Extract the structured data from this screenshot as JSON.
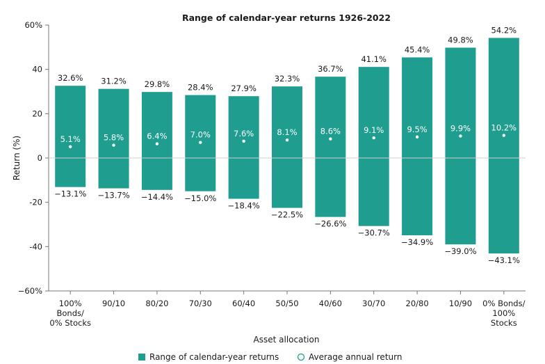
{
  "chart_data": {
    "type": "bar",
    "title": "Range of calendar-year returns 1926-2022",
    "xlabel": "Asset allocation",
    "ylabel": "Return (%)",
    "ylim": [
      -60,
      60
    ],
    "yticks": [
      "60%",
      "40",
      "20",
      "0",
      "-20",
      "-40",
      "−60%"
    ],
    "yticks_values": [
      60,
      40,
      20,
      0,
      -20,
      -40,
      -60
    ],
    "grid": false,
    "legend_position": "bottom",
    "categories": [
      "100% Bonds/ 0% Stocks",
      "90/10",
      "80/20",
      "70/30",
      "60/40",
      "50/50",
      "40/60",
      "30/70",
      "20/80",
      "10/90",
      "0% Bonds/ 100% Stocks"
    ],
    "category_lines": [
      [
        "100%",
        "Bonds/",
        "0% Stocks"
      ],
      [
        "90/10"
      ],
      [
        "80/20"
      ],
      [
        "70/30"
      ],
      [
        "60/40"
      ],
      [
        "50/50"
      ],
      [
        "40/60"
      ],
      [
        "30/70"
      ],
      [
        "20/80"
      ],
      [
        "10/90"
      ],
      [
        "0% Bonds/",
        "100%",
        "Stocks"
      ]
    ],
    "series": [
      {
        "name": "Range of calendar-year returns",
        "color": "#1f9e8f",
        "high": [
          32.6,
          31.2,
          29.8,
          28.4,
          27.9,
          32.3,
          36.7,
          41.1,
          45.4,
          49.8,
          54.2
        ],
        "low": [
          -13.1,
          -13.7,
          -14.4,
          -15.0,
          -18.4,
          -22.5,
          -26.6,
          -30.7,
          -34.9,
          -39.0,
          -43.1
        ],
        "high_labels": [
          "32.6%",
          "31.2%",
          "29.8%",
          "28.4%",
          "27.9%",
          "32.3%",
          "36.7%",
          "41.1%",
          "45.4%",
          "49.8%",
          "54.2%"
        ],
        "low_labels": [
          "−13.1%",
          "−13.7%",
          "−14.4%",
          "−15.0%",
          "−18.4%",
          "−22.5%",
          "−26.6%",
          "−30.7%",
          "−34.9%",
          "−39.0%",
          "−43.1%"
        ]
      },
      {
        "name": "Average annual return",
        "values": [
          5.1,
          5.8,
          6.4,
          7.0,
          7.6,
          8.1,
          8.6,
          9.1,
          9.5,
          9.9,
          10.2
        ],
        "labels": [
          "5.1%",
          "5.8%",
          "6.4%",
          "7.0%",
          "7.6%",
          "8.1%",
          "8.6%",
          "9.1%",
          "9.5%",
          "9.9%",
          "10.2%"
        ]
      }
    ]
  }
}
